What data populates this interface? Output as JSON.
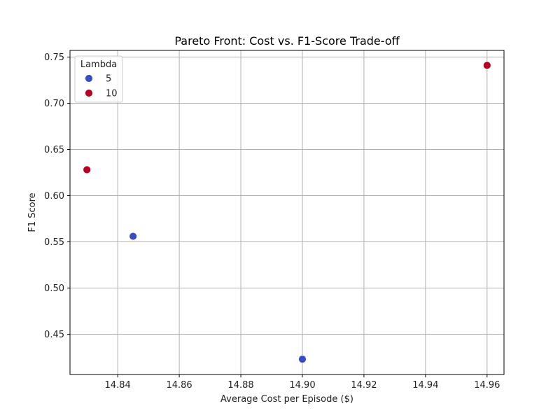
{
  "chart_data": {
    "type": "scatter",
    "title": "Pareto Front: Cost vs. F1-Score Trade-off",
    "xlabel": "Average Cost per Episode ($)",
    "ylabel": "F1 Score",
    "xlim": [
      14.8245,
      14.9655
    ],
    "ylim": [
      0.4064,
      0.7572
    ],
    "xticks": [
      14.84,
      14.86,
      14.88,
      14.9,
      14.92,
      14.94,
      14.96
    ],
    "xtick_labels": [
      "14.84",
      "14.86",
      "14.88",
      "14.90",
      "14.92",
      "14.94",
      "14.96"
    ],
    "yticks": [
      0.45,
      0.5,
      0.55,
      0.6,
      0.65,
      0.7,
      0.75
    ],
    "ytick_labels": [
      "0.45",
      "0.50",
      "0.55",
      "0.60",
      "0.65",
      "0.70",
      "0.75"
    ],
    "grid": true,
    "legend": {
      "title": "Lambda",
      "position": "top-left"
    },
    "series": [
      {
        "name": "5",
        "color": "#3b4cc0",
        "points": [
          {
            "x": 14.845,
            "y": 0.556
          },
          {
            "x": 14.9,
            "y": 0.423
          }
        ]
      },
      {
        "name": "10",
        "color": "#b40426",
        "points": [
          {
            "x": 14.83,
            "y": 0.628
          },
          {
            "x": 14.96,
            "y": 0.741
          }
        ]
      }
    ]
  }
}
